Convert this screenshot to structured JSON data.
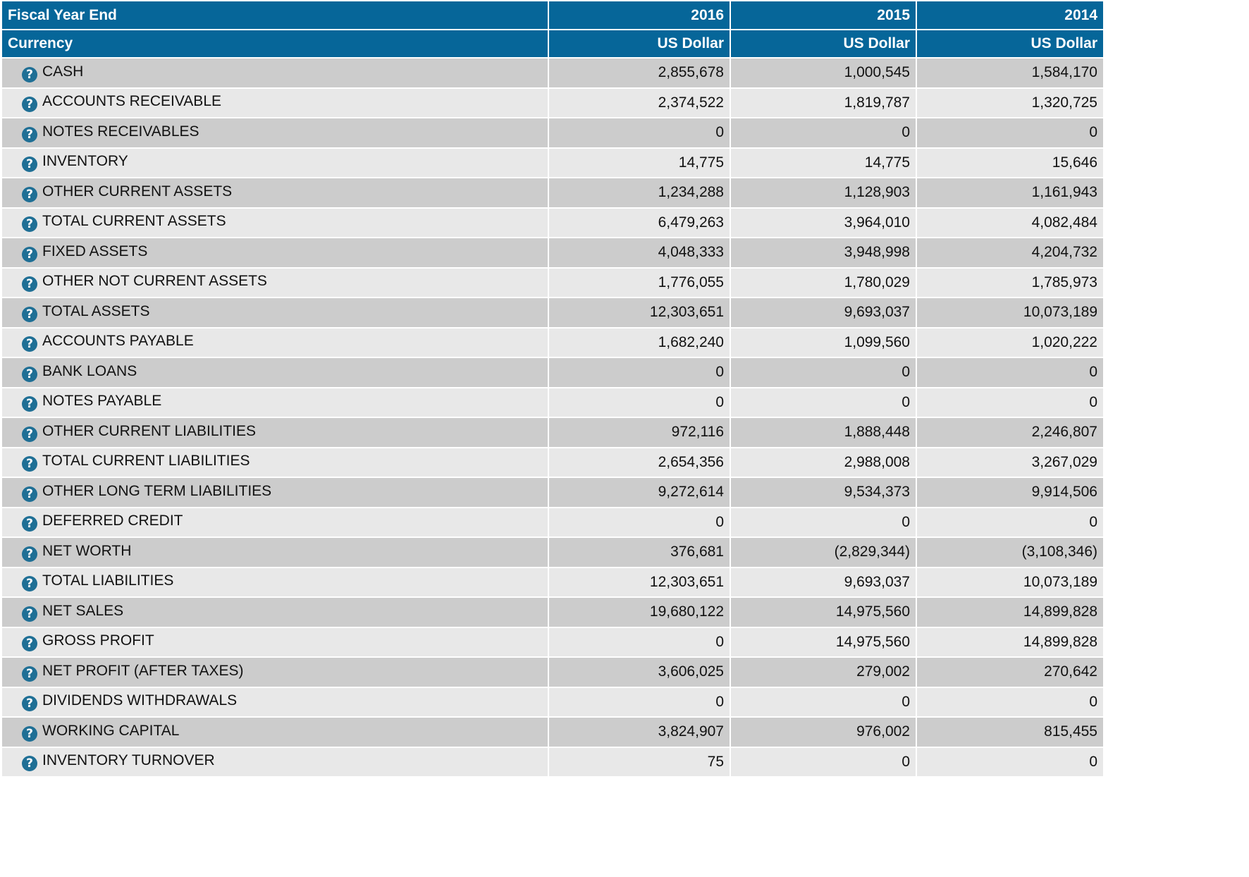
{
  "header": {
    "label_row1": "Fiscal Year End",
    "label_row2": "Currency",
    "years": [
      "2016",
      "2015",
      "2014"
    ],
    "currencies": [
      "US Dollar",
      "US Dollar",
      "US Dollar"
    ]
  },
  "colors": {
    "header_bg": "#066699",
    "row_dark": "#cccccc",
    "row_light": "#e8e8e8",
    "icon": "#1f6f95"
  },
  "icon_name": "help-question-icon",
  "rows": [
    {
      "label": "CASH",
      "values": [
        "2,855,678",
        "1,000,545",
        "1,584,170"
      ]
    },
    {
      "label": "ACCOUNTS RECEIVABLE",
      "values": [
        "2,374,522",
        "1,819,787",
        "1,320,725"
      ]
    },
    {
      "label": "NOTES RECEIVABLES",
      "values": [
        "0",
        "0",
        "0"
      ]
    },
    {
      "label": "INVENTORY",
      "values": [
        "14,775",
        "14,775",
        "15,646"
      ]
    },
    {
      "label": "OTHER CURRENT ASSETS",
      "values": [
        "1,234,288",
        "1,128,903",
        "1,161,943"
      ]
    },
    {
      "label": "TOTAL CURRENT ASSETS",
      "values": [
        "6,479,263",
        "3,964,010",
        "4,082,484"
      ]
    },
    {
      "label": "FIXED ASSETS",
      "values": [
        "4,048,333",
        "3,948,998",
        "4,204,732"
      ]
    },
    {
      "label": "OTHER NOT CURRENT ASSETS",
      "values": [
        "1,776,055",
        "1,780,029",
        "1,785,973"
      ]
    },
    {
      "label": "TOTAL ASSETS",
      "values": [
        "12,303,651",
        "9,693,037",
        "10,073,189"
      ]
    },
    {
      "label": "ACCOUNTS PAYABLE",
      "values": [
        "1,682,240",
        "1,099,560",
        "1,020,222"
      ]
    },
    {
      "label": "BANK LOANS",
      "values": [
        "0",
        "0",
        "0"
      ]
    },
    {
      "label": "NOTES PAYABLE",
      "values": [
        "0",
        "0",
        "0"
      ]
    },
    {
      "label": "OTHER CURRENT LIABILITIES",
      "values": [
        "972,116",
        "1,888,448",
        "2,246,807"
      ]
    },
    {
      "label": "TOTAL CURRENT LIABILITIES",
      "values": [
        "2,654,356",
        "2,988,008",
        "3,267,029"
      ]
    },
    {
      "label": "OTHER LONG TERM LIABILITIES",
      "values": [
        "9,272,614",
        "9,534,373",
        "9,914,506"
      ]
    },
    {
      "label": "DEFERRED CREDIT",
      "values": [
        "0",
        "0",
        "0"
      ]
    },
    {
      "label": "NET WORTH",
      "values": [
        "376,681",
        "(2,829,344)",
        "(3,108,346)"
      ]
    },
    {
      "label": "TOTAL LIABILITIES",
      "values": [
        "12,303,651",
        "9,693,037",
        "10,073,189"
      ]
    },
    {
      "label": "NET SALES",
      "values": [
        "19,680,122",
        "14,975,560",
        "14,899,828"
      ]
    },
    {
      "label": "GROSS PROFIT",
      "values": [
        "0",
        "14,975,560",
        "14,899,828"
      ]
    },
    {
      "label": "NET PROFIT (AFTER TAXES)",
      "values": [
        "3,606,025",
        "279,002",
        "270,642"
      ]
    },
    {
      "label": "DIVIDENDS WITHDRAWALS",
      "values": [
        "0",
        "0",
        "0"
      ]
    },
    {
      "label": "WORKING CAPITAL",
      "values": [
        "3,824,907",
        "976,002",
        "815,455"
      ]
    },
    {
      "label": "INVENTORY TURNOVER",
      "values": [
        "75",
        "0",
        "0"
      ]
    }
  ]
}
